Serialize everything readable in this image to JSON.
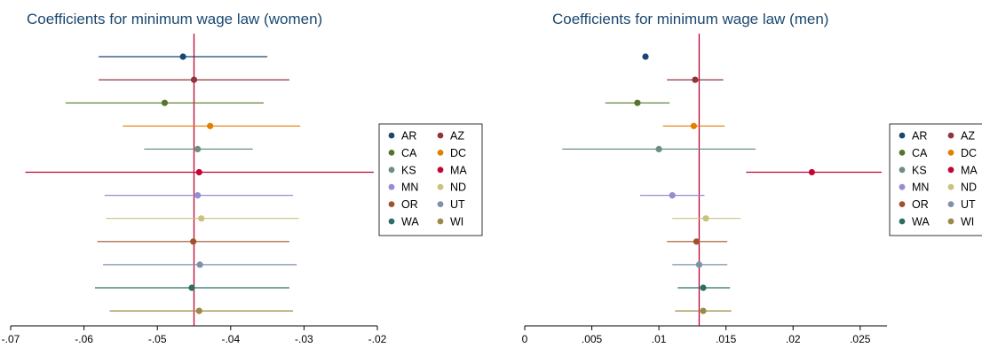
{
  "series": [
    "AR",
    "AZ",
    "CA",
    "DC",
    "KS",
    "MA",
    "MN",
    "ND",
    "OR",
    "UT",
    "WA",
    "WI"
  ],
  "colors": {
    "AR": "#1a476f",
    "AZ": "#90353b",
    "CA": "#55752f",
    "DC": "#e37e00",
    "KS": "#6e8e84",
    "MA": "#c10534",
    "MN": "#938dd2",
    "ND": "#cac27e",
    "OR": "#a0522d",
    "UT": "#7b92a8",
    "WA": "#2d6d66",
    "WI": "#9c8847"
  },
  "chart_data": [
    {
      "type": "scatter",
      "title": "Coefficients for minimum wage law (women)",
      "xlim": [
        -0.07,
        -0.02
      ],
      "xticks": [
        -0.07,
        -0.06,
        -0.05,
        -0.04,
        -0.03,
        -0.02
      ],
      "xtick_labels": [
        "-.07",
        "-.06",
        "-.05",
        "-.04",
        "-.03",
        "-.02"
      ],
      "reference_line": -0.045,
      "reference_color": "#c10534",
      "points": [
        {
          "name": "AR",
          "est": -0.0465,
          "lo": -0.058,
          "hi": -0.035
        },
        {
          "name": "AZ",
          "est": -0.045,
          "lo": -0.058,
          "hi": -0.032
        },
        {
          "name": "CA",
          "est": -0.049,
          "lo": -0.0625,
          "hi": -0.0355
        },
        {
          "name": "DC",
          "est": -0.0428,
          "lo": -0.0547,
          "hi": -0.0305
        },
        {
          "name": "KS",
          "est": -0.0445,
          "lo": -0.0518,
          "hi": -0.037
        },
        {
          "name": "MA",
          "est": -0.0443,
          "lo": -0.068,
          "hi": -0.0205
        },
        {
          "name": "MN",
          "est": -0.0445,
          "lo": -0.0572,
          "hi": -0.0315
        },
        {
          "name": "ND",
          "est": -0.044,
          "lo": -0.057,
          "hi": -0.0307
        },
        {
          "name": "OR",
          "est": -0.0451,
          "lo": -0.0582,
          "hi": -0.032
        },
        {
          "name": "UT",
          "est": -0.0442,
          "lo": -0.0574,
          "hi": -0.031
        },
        {
          "name": "WA",
          "est": -0.0453,
          "lo": -0.0585,
          "hi": -0.032
        },
        {
          "name": "WI",
          "est": -0.0443,
          "lo": -0.0565,
          "hi": -0.0315
        }
      ]
    },
    {
      "type": "scatter",
      "title": "Coefficients for minimum wage law (men)",
      "xlim": [
        0,
        0.027
      ],
      "xticks": [
        0,
        0.005,
        0.01,
        0.015,
        0.02,
        0.025
      ],
      "xtick_labels": [
        "0",
        ".005",
        ".01",
        ".015",
        ".02",
        ".025"
      ],
      "reference_line": 0.013,
      "reference_color": "#c10534",
      "points": [
        {
          "name": "AR",
          "est": 0.009,
          "lo": null,
          "hi": null
        },
        {
          "name": "AZ",
          "est": 0.0127,
          "lo": 0.0106,
          "hi": 0.0148
        },
        {
          "name": "CA",
          "est": 0.0084,
          "lo": 0.006,
          "hi": 0.0108
        },
        {
          "name": "DC",
          "est": 0.0126,
          "lo": 0.0103,
          "hi": 0.0149
        },
        {
          "name": "KS",
          "est": 0.01,
          "lo": 0.0028,
          "hi": 0.0172
        },
        {
          "name": "MA",
          "est": 0.0214,
          "lo": 0.0165,
          "hi": 0.0266
        },
        {
          "name": "MN",
          "est": 0.011,
          "lo": 0.0086,
          "hi": 0.0134
        },
        {
          "name": "ND",
          "est": 0.0135,
          "lo": 0.011,
          "hi": 0.0161
        },
        {
          "name": "OR",
          "est": 0.0128,
          "lo": 0.0106,
          "hi": 0.0151
        },
        {
          "name": "UT",
          "est": 0.013,
          "lo": 0.011,
          "hi": 0.0151
        },
        {
          "name": "WA",
          "est": 0.0133,
          "lo": 0.0114,
          "hi": 0.0153
        },
        {
          "name": "WI",
          "est": 0.0133,
          "lo": 0.0112,
          "hi": 0.0154
        }
      ]
    }
  ]
}
